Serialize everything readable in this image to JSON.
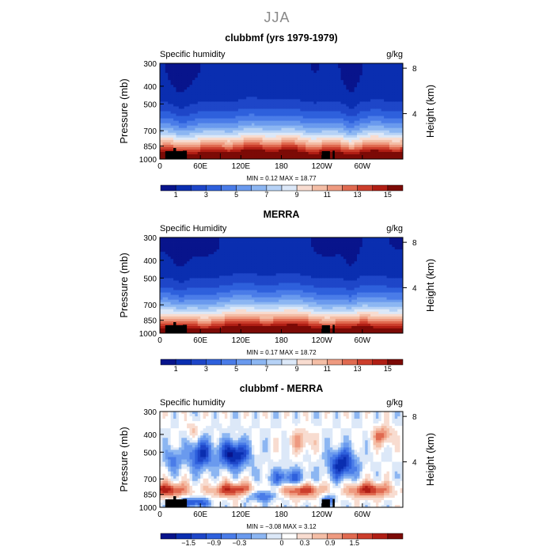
{
  "figure": {
    "title": "JJA"
  },
  "chart_data": [
    {
      "type": "heatmap",
      "name": "clubbmf",
      "title": "clubbmf (yrs 1979-1979)",
      "left_label": "Specific humidity",
      "units": "g/kg",
      "ylabel": "Pressure (mb)",
      "ylabel_right": "Height (km)",
      "xticks": [
        "0",
        "60E",
        "120E",
        "180",
        "120W",
        "60W"
      ],
      "x_tick_lon": [
        0,
        60,
        120,
        180,
        240,
        300
      ],
      "xlim": [
        0,
        360
      ],
      "yticks": [
        "300",
        "400",
        "500",
        "700",
        "850",
        "1000"
      ],
      "y_tick_p": [
        300,
        400,
        500,
        700,
        850,
        1000
      ],
      "ylim": [
        1000,
        300
      ],
      "right_ticks": [
        "8",
        "4"
      ],
      "right_tick_km": [
        8,
        4
      ],
      "stats": "MIN =     0.12   MAX =   18.77",
      "min": 0.12,
      "max": 18.77,
      "colorbar_labels": [
        "1",
        "3",
        "5",
        "7",
        "9",
        "11",
        "13",
        "15"
      ],
      "colorbar_levels": 16,
      "colorbar_colors": [
        "#08148c",
        "#0a2eb0",
        "#1e46c8",
        "#2e60dc",
        "#4a7ce8",
        "#6a9aee",
        "#8cb6f2",
        "#b6d2f6",
        "#dce8f8",
        "#f8dcd0",
        "#f4bea6",
        "#ee9a80",
        "#e06a50",
        "#cc3e2c",
        "#b01e14",
        "#7c0a06"
      ]
    },
    {
      "type": "heatmap",
      "name": "merra",
      "title": "MERRA",
      "left_label": "Specific Humidity",
      "units": "g/kg",
      "ylabel": "Pressure (mb)",
      "ylabel_right": "Height (km)",
      "xticks": [
        "0",
        "60E",
        "120E",
        "180",
        "120W",
        "60W"
      ],
      "x_tick_lon": [
        0,
        60,
        120,
        180,
        240,
        300
      ],
      "xlim": [
        0,
        360
      ],
      "yticks": [
        "300",
        "400",
        "500",
        "700",
        "850",
        "1000"
      ],
      "y_tick_p": [
        300,
        400,
        500,
        700,
        850,
        1000
      ],
      "ylim": [
        1000,
        300
      ],
      "right_ticks": [
        "8",
        "4"
      ],
      "right_tick_km": [
        8,
        4
      ],
      "stats": "MIN =     0.17   MAX =   18.72",
      "min": 0.17,
      "max": 18.72,
      "colorbar_labels": [
        "1",
        "3",
        "5",
        "7",
        "9",
        "11",
        "13",
        "15"
      ],
      "colorbar_levels": 16,
      "colorbar_colors": [
        "#08148c",
        "#0a2eb0",
        "#1e46c8",
        "#2e60dc",
        "#4a7ce8",
        "#6a9aee",
        "#8cb6f2",
        "#b6d2f6",
        "#dce8f8",
        "#f8dcd0",
        "#f4bea6",
        "#ee9a80",
        "#e06a50",
        "#cc3e2c",
        "#b01e14",
        "#7c0a06"
      ]
    },
    {
      "type": "heatmap",
      "name": "difference",
      "title": "clubbmf - MERRA",
      "left_label": "Specific humidity",
      "units": "g/kg",
      "ylabel": "Pressure (mb)",
      "ylabel_right": "Height (km)",
      "xticks": [
        "0",
        "60E",
        "120E",
        "180",
        "120W",
        "60W"
      ],
      "x_tick_lon": [
        0,
        60,
        120,
        180,
        240,
        300
      ],
      "xlim": [
        0,
        360
      ],
      "yticks": [
        "300",
        "400",
        "500",
        "700",
        "850",
        "1000"
      ],
      "y_tick_p": [
        300,
        400,
        500,
        700,
        850,
        1000
      ],
      "ylim": [
        1000,
        300
      ],
      "right_ticks": [
        "8",
        "4"
      ],
      "right_tick_km": [
        8,
        4
      ],
      "stats": "MIN =   −3.08   MAX =     3.12",
      "min": -3.08,
      "max": 3.12,
      "colorbar_labels": [
        "−1.5",
        "−0.9",
        "−0.3",
        "0",
        "0.3",
        "0.9",
        "1.5"
      ],
      "colorbar_levels": 16,
      "colorbar_colors": [
        "#08148c",
        "#0a2eb0",
        "#1e46c8",
        "#2e60dc",
        "#4a7ce8",
        "#6a9aee",
        "#8cb6f2",
        "#dce8f8",
        "#ffffff",
        "#f8dcd0",
        "#f4bea6",
        "#ee9a80",
        "#e06a50",
        "#cc3e2c",
        "#b01e14",
        "#7c0a06"
      ]
    }
  ]
}
